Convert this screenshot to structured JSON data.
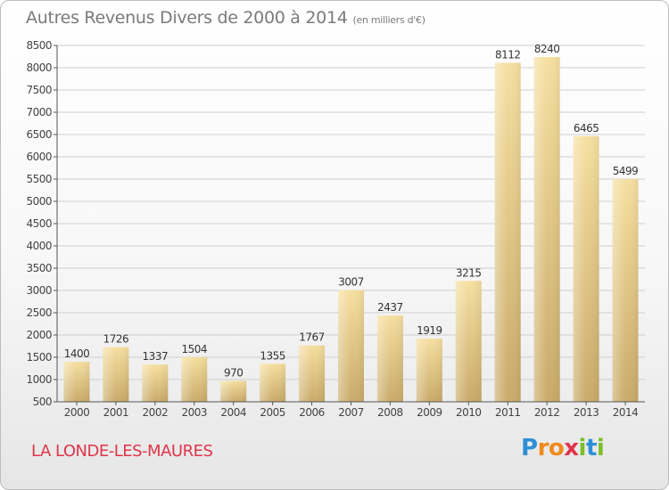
{
  "header": {
    "title": "Autres Revenus Divers de 2000 à 2014",
    "unit": "(en milliers d'€)"
  },
  "town": "LA LONDE-LES-MAURES",
  "logo": {
    "text": "Proxiti",
    "letters": [
      {
        "ch": "P",
        "color": "#2e8fd6"
      },
      {
        "ch": "r",
        "color": "#f08a1c"
      },
      {
        "ch": "o",
        "color": "#f08a1c"
      },
      {
        "ch": "x",
        "color": "#e0354a"
      },
      {
        "ch": "i",
        "color": "#7cbf2a"
      },
      {
        "ch": "t",
        "color": "#2e8fd6"
      },
      {
        "ch": "i",
        "color": "#7cbf2a"
      }
    ]
  },
  "chart_data": {
    "type": "bar",
    "title": "Autres Revenus Divers de 2000 à 2014",
    "subtitle": "(en milliers d'€)",
    "categories": [
      "2000",
      "2001",
      "2002",
      "2003",
      "2004",
      "2005",
      "2006",
      "2007",
      "2008",
      "2009",
      "2010",
      "2011",
      "2012",
      "2013",
      "2014"
    ],
    "values": [
      1400,
      1726,
      1337,
      1504,
      970,
      1355,
      1767,
      3007,
      2437,
      1919,
      3215,
      8112,
      8240,
      6465,
      5499
    ],
    "ylim": [
      500,
      8500
    ],
    "yticks": [
      500,
      1000,
      1500,
      2000,
      2500,
      3000,
      3500,
      4000,
      4500,
      5000,
      5500,
      6000,
      6500,
      7000,
      7500,
      8000,
      8500
    ],
    "grid": true,
    "colors": {
      "bar_light": "#f6dfa0",
      "bar_dark": "#c9ab6a",
      "axis": "#555555",
      "grid": "#cfcfcf"
    }
  }
}
